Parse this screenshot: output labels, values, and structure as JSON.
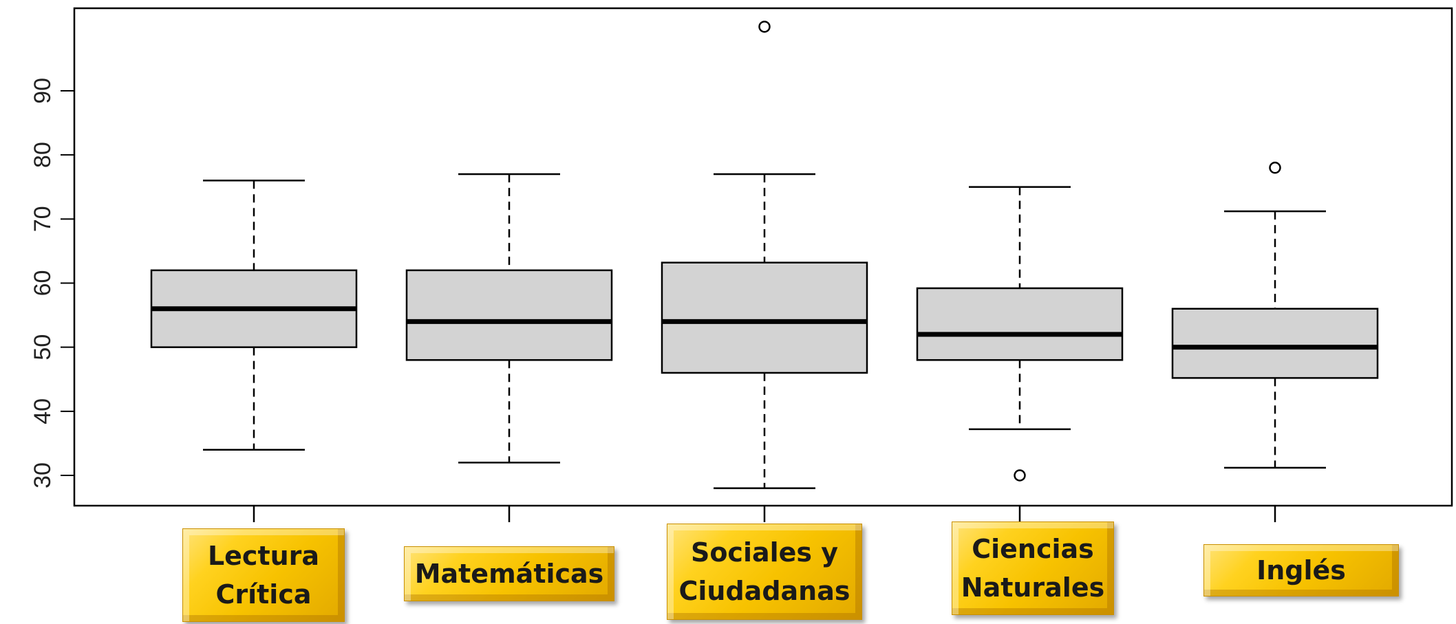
{
  "chart_data": {
    "type": "boxplot",
    "title": "",
    "xlabel": "",
    "ylabel": "",
    "ylim": [
      25,
      100
    ],
    "yticks": [
      30,
      40,
      50,
      60,
      70,
      80,
      90
    ],
    "grid": false,
    "categories": [
      "Lectura\nCrítica",
      "Matemáticas",
      "Sociales y\nCiudadanas",
      "Ciencias\nNaturales",
      "Inglés"
    ],
    "boxes": [
      {
        "whisker_low": 34,
        "q1": 50,
        "median": 56,
        "q3": 62,
        "whisker_high": 76,
        "outliers": []
      },
      {
        "whisker_low": 32,
        "q1": 48,
        "median": 54,
        "q3": 62,
        "whisker_high": 77,
        "outliers": []
      },
      {
        "whisker_low": 28,
        "q1": 46,
        "median": 54,
        "q3": 63.2,
        "whisker_high": 77,
        "outliers": [
          100
        ]
      },
      {
        "whisker_low": 37.2,
        "q1": 48,
        "median": 52,
        "q3": 59.2,
        "whisker_high": 75,
        "outliers": [
          30
        ]
      },
      {
        "whisker_low": 31.2,
        "q1": 45.2,
        "median": 50,
        "q3": 56,
        "whisker_high": 71.2,
        "outliers": [
          78
        ]
      }
    ],
    "colors": {
      "box_fill": "#d3d3d3",
      "stroke": "#000000",
      "label_fill": "#f7c200"
    }
  }
}
